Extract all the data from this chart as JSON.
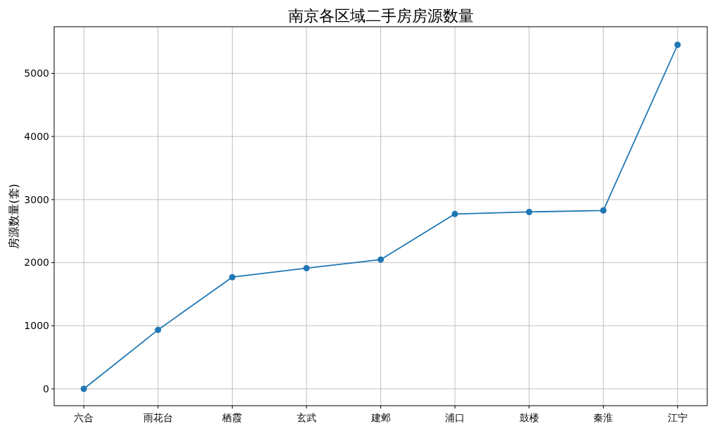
{
  "chart_data": {
    "type": "line",
    "title": "南京各区域二手房房源数量",
    "ylabel": "房源数量(套)",
    "categories": [
      "六合",
      "雨花台",
      "栖霞",
      "玄武",
      "建邺",
      "浦口",
      "鼓楼",
      "秦淮",
      "江宁"
    ],
    "series": [
      {
        "color": "#1f77b4",
        "values": [
          0,
          935,
          1770,
          1913,
          2049,
          2772,
          2804,
          2828,
          5453
        ]
      }
    ],
    "ylim": [
      -267,
      5740
    ],
    "yticks": [
      0,
      1000,
      2000,
      3000,
      4000,
      5000
    ],
    "grid": true,
    "marker": "circle",
    "line_style": "solid"
  }
}
